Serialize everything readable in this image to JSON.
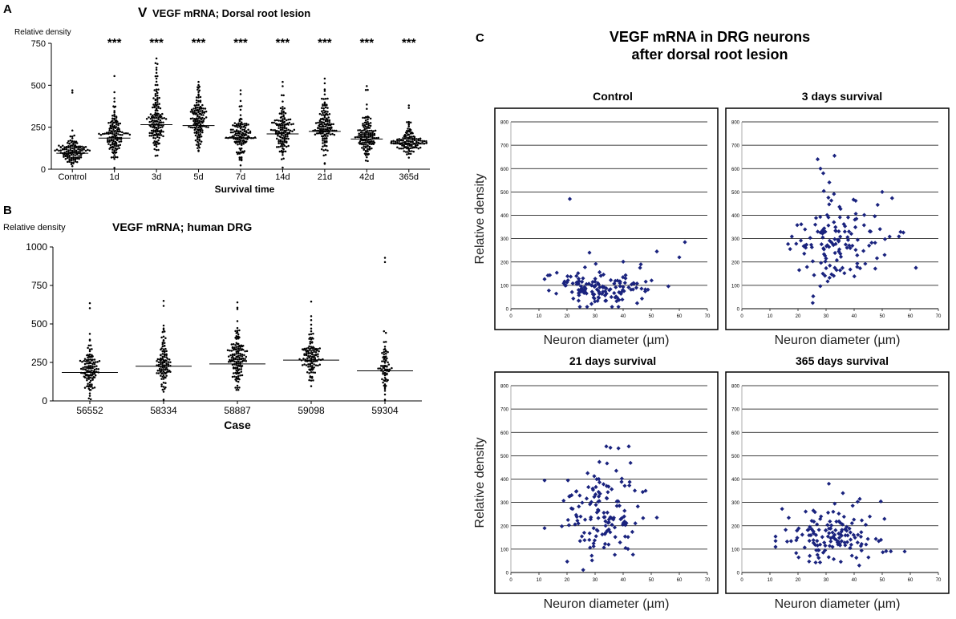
{
  "panel_labels": {
    "a": "A",
    "b": "B",
    "c": "C"
  },
  "colors": {
    "marker_c": "#1a237e",
    "dot_ab": "#000000",
    "grid": "#000000"
  },
  "chart_data": [
    {
      "id": "A",
      "type": "scatter",
      "subtype": "dot-plot-with-median",
      "title_prefix": "V",
      "title": "VEGF mRNA; Dorsal root lesion",
      "ylabel": "Relative density",
      "xlabel": "Survival time",
      "ylim": [
        0,
        750
      ],
      "yticks": [
        0,
        250,
        500,
        750
      ],
      "categories": [
        "Control",
        "1d",
        "3d",
        "5d",
        "7d",
        "14d",
        "21d",
        "42d",
        "365d"
      ],
      "medians": [
        95,
        185,
        265,
        260,
        185,
        210,
        225,
        180,
        150
      ],
      "spread": [
        45,
        95,
        110,
        95,
        75,
        85,
        95,
        75,
        50
      ],
      "maxima": [
        470,
        555,
        660,
        520,
        470,
        520,
        540,
        495,
        380
      ],
      "counts": [
        130,
        140,
        150,
        140,
        130,
        135,
        140,
        135,
        130
      ],
      "significance": [
        "",
        "***",
        "***",
        "***",
        "***",
        "***",
        "***",
        "***",
        "***"
      ]
    },
    {
      "id": "B",
      "type": "scatter",
      "subtype": "dot-plot-with-median",
      "title": "VEGF mRNA; human DRG",
      "ylabel": "Relative density",
      "xlabel": "Case",
      "ylim": [
        0,
        1000
      ],
      "yticks": [
        0,
        250,
        500,
        750,
        1000
      ],
      "categories": [
        "56552",
        "58334",
        "58887",
        "59098",
        "59304"
      ],
      "medians": [
        185,
        225,
        240,
        265,
        195
      ],
      "spread": [
        110,
        110,
        115,
        90,
        95
      ],
      "maxima": [
        635,
        650,
        640,
        645,
        930
      ],
      "counts": [
        120,
        110,
        140,
        120,
        70
      ]
    },
    {
      "id": "C",
      "type": "scatter",
      "title": "VEGF mRNA in DRG neurons\nafter dorsal root lesion",
      "xlabel": "Neuron diameter (µm)",
      "ylabel": "Relative density",
      "xlim": [
        0,
        70
      ],
      "ylim": [
        0,
        800
      ],
      "xticks": [
        0,
        10,
        20,
        30,
        40,
        50,
        60,
        70
      ],
      "yticks": [
        0,
        100,
        200,
        300,
        400,
        500,
        600,
        700,
        800
      ],
      "subplots": [
        {
          "title": "Control",
          "x_mean": 32,
          "x_sd": 9,
          "y_mean": 85,
          "y_sd": 45,
          "n": 140,
          "outliers": [
            [
              21,
              470
            ],
            [
              62,
              285
            ],
            [
              60,
              220
            ],
            [
              52,
              245
            ],
            [
              28,
              240
            ]
          ]
        },
        {
          "title": "3 days survival",
          "x_mean": 35,
          "x_sd": 9,
          "y_mean": 280,
          "y_sd": 110,
          "n": 140,
          "outliers": [
            [
              27,
              640
            ],
            [
              33,
              655
            ],
            [
              28,
              600
            ],
            [
              29,
              580
            ],
            [
              62,
              175
            ],
            [
              50,
              500
            ]
          ]
        },
        {
          "title": "21 days survival",
          "x_mean": 32,
          "x_sd": 8,
          "y_mean": 240,
          "y_sd": 110,
          "n": 140,
          "outliers": [
            [
              34,
              540
            ],
            [
              42,
              540
            ],
            [
              52,
              235
            ],
            [
              48,
              350
            ]
          ]
        },
        {
          "title": "365 days survival",
          "x_mean": 32,
          "x_sd": 9,
          "y_mean": 145,
          "y_sd": 60,
          "n": 140,
          "outliers": [
            [
              31,
              380
            ],
            [
              36,
              340
            ],
            [
              12,
              135
            ],
            [
              58,
              90
            ],
            [
              42,
              315
            ]
          ]
        }
      ]
    }
  ]
}
